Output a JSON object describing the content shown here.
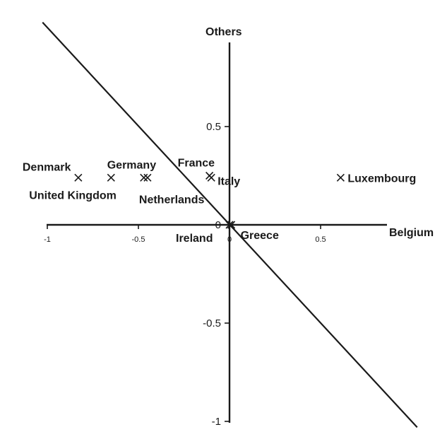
{
  "chart_data": {
    "type": "scatter",
    "xlabel": "Belgium",
    "ylabel": "Others",
    "xlim": [
      -1,
      1
    ],
    "ylim": [
      -1,
      1
    ],
    "x_ticks": [
      "-1",
      "-0.5",
      "0",
      "0.5"
    ],
    "y_ticks": [
      "-1",
      "-0.5",
      "0",
      "0.5"
    ],
    "grid": false,
    "legend": "none",
    "reference_line": {
      "x1": -1,
      "y1": 1,
      "x2": 1,
      "y2": -1
    },
    "points": [
      {
        "label": "Denmark",
        "x": -0.83,
        "y": 0.24
      },
      {
        "label": "United Kingdom",
        "x": -0.65,
        "y": 0.24
      },
      {
        "label": "Germany",
        "x": -0.47,
        "y": 0.24
      },
      {
        "label": "Netherlands",
        "x": -0.45,
        "y": 0.24
      },
      {
        "label": "France",
        "x": -0.11,
        "y": 0.25
      },
      {
        "label": "Italy",
        "x": -0.1,
        "y": 0.24
      },
      {
        "label": "Ireland",
        "x": 0.0,
        "y": 0.0
      },
      {
        "label": "Greece",
        "x": 0.01,
        "y": 0.0
      },
      {
        "label": "Luxembourg",
        "x": 0.61,
        "y": 0.24
      }
    ]
  }
}
